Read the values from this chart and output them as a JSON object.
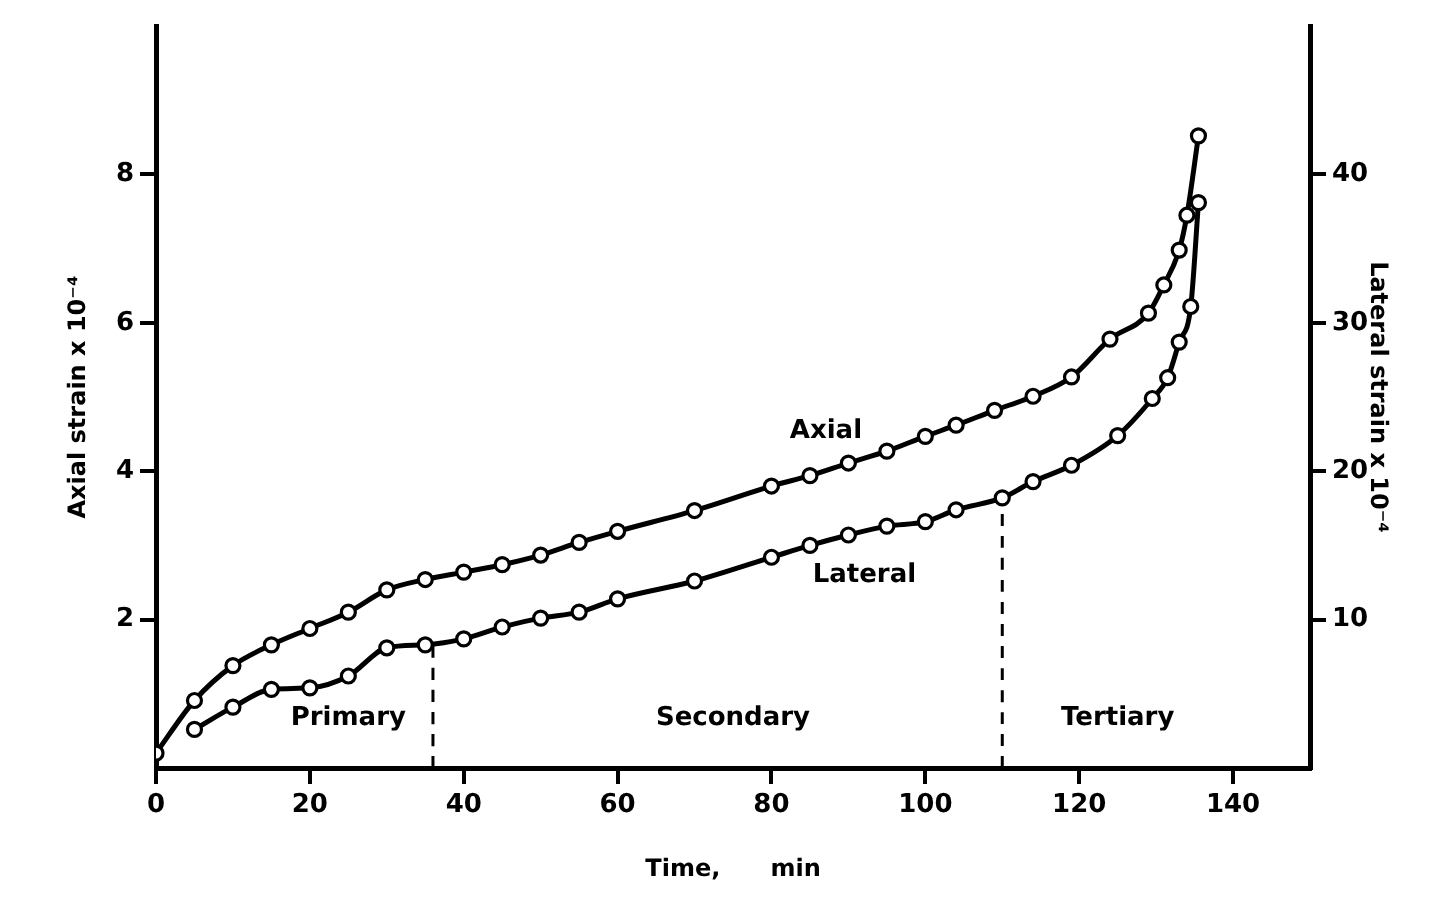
{
  "chart_data": {
    "type": "line",
    "xlabel": "Time,      min",
    "ylabel": "Axial strain x 10⁻⁴",
    "y2label": "Lateral strain x 10⁻⁴",
    "xlim": [
      0,
      150
    ],
    "xticks": [
      0,
      20,
      40,
      60,
      80,
      100,
      120,
      140
    ],
    "ylim": [
      0,
      10
    ],
    "yticks": [
      2,
      4,
      6,
      8
    ],
    "y2lim": [
      0,
      50
    ],
    "y2ticks": [
      10,
      20,
      30,
      40
    ],
    "marker": "circle",
    "legend": false,
    "grid": false,
    "series": [
      {
        "name": "Axial",
        "color": "#000000",
        "axis": "y",
        "x": [
          0,
          5,
          10,
          15,
          20,
          25,
          30,
          35,
          40,
          45,
          50,
          55,
          60,
          70,
          80,
          85,
          90,
          95,
          100,
          104,
          109,
          114,
          119,
          124,
          129,
          131,
          133,
          134,
          135.5
        ],
        "values": [
          0.2,
          0.91,
          1.38,
          1.66,
          1.88,
          2.1,
          2.4,
          2.54,
          2.64,
          2.74,
          2.87,
          3.04,
          3.19,
          3.47,
          3.8,
          3.94,
          4.11,
          4.27,
          4.47,
          4.62,
          4.82,
          5.01,
          5.27,
          5.78,
          6.13,
          6.51,
          6.98,
          7.45,
          8.52
        ]
      },
      {
        "name": "Lateral",
        "color": "#000000",
        "axis": "y2",
        "x": [
          5,
          10,
          15,
          20,
          25,
          30,
          35,
          40,
          45,
          50,
          55,
          60,
          70,
          80,
          85,
          90,
          95,
          100,
          104,
          110,
          114,
          119,
          125,
          129.5,
          131.5,
          133,
          134.5,
          135.5
        ],
        "values": [
          2.6,
          4.1,
          5.3,
          5.4,
          6.2,
          8.1,
          8.3,
          8.7,
          9.5,
          10.1,
          10.5,
          11.4,
          12.6,
          14.2,
          15,
          15.7,
          16.3,
          16.6,
          17.4,
          18.2,
          19.3,
          20.4,
          22.4,
          24.9,
          26.3,
          28.7,
          31.1,
          38.1
        ]
      },
      {
        "type": "line",
        "color": "#000000",
        "axis": "y2",
        "marker": "none",
        "line_style": "dashed",
        "x": [
          36,
          36
        ],
        "values": [
          0,
          8.4
        ]
      },
      {
        "type": "line",
        "color": "#000000",
        "axis": "y2",
        "marker": "none",
        "line_style": "dashed",
        "x": [
          110,
          110
        ],
        "values": [
          0,
          18.2
        ]
      }
    ],
    "annotations": [
      "Primary",
      "Secondary",
      "Tertiary"
    ]
  }
}
